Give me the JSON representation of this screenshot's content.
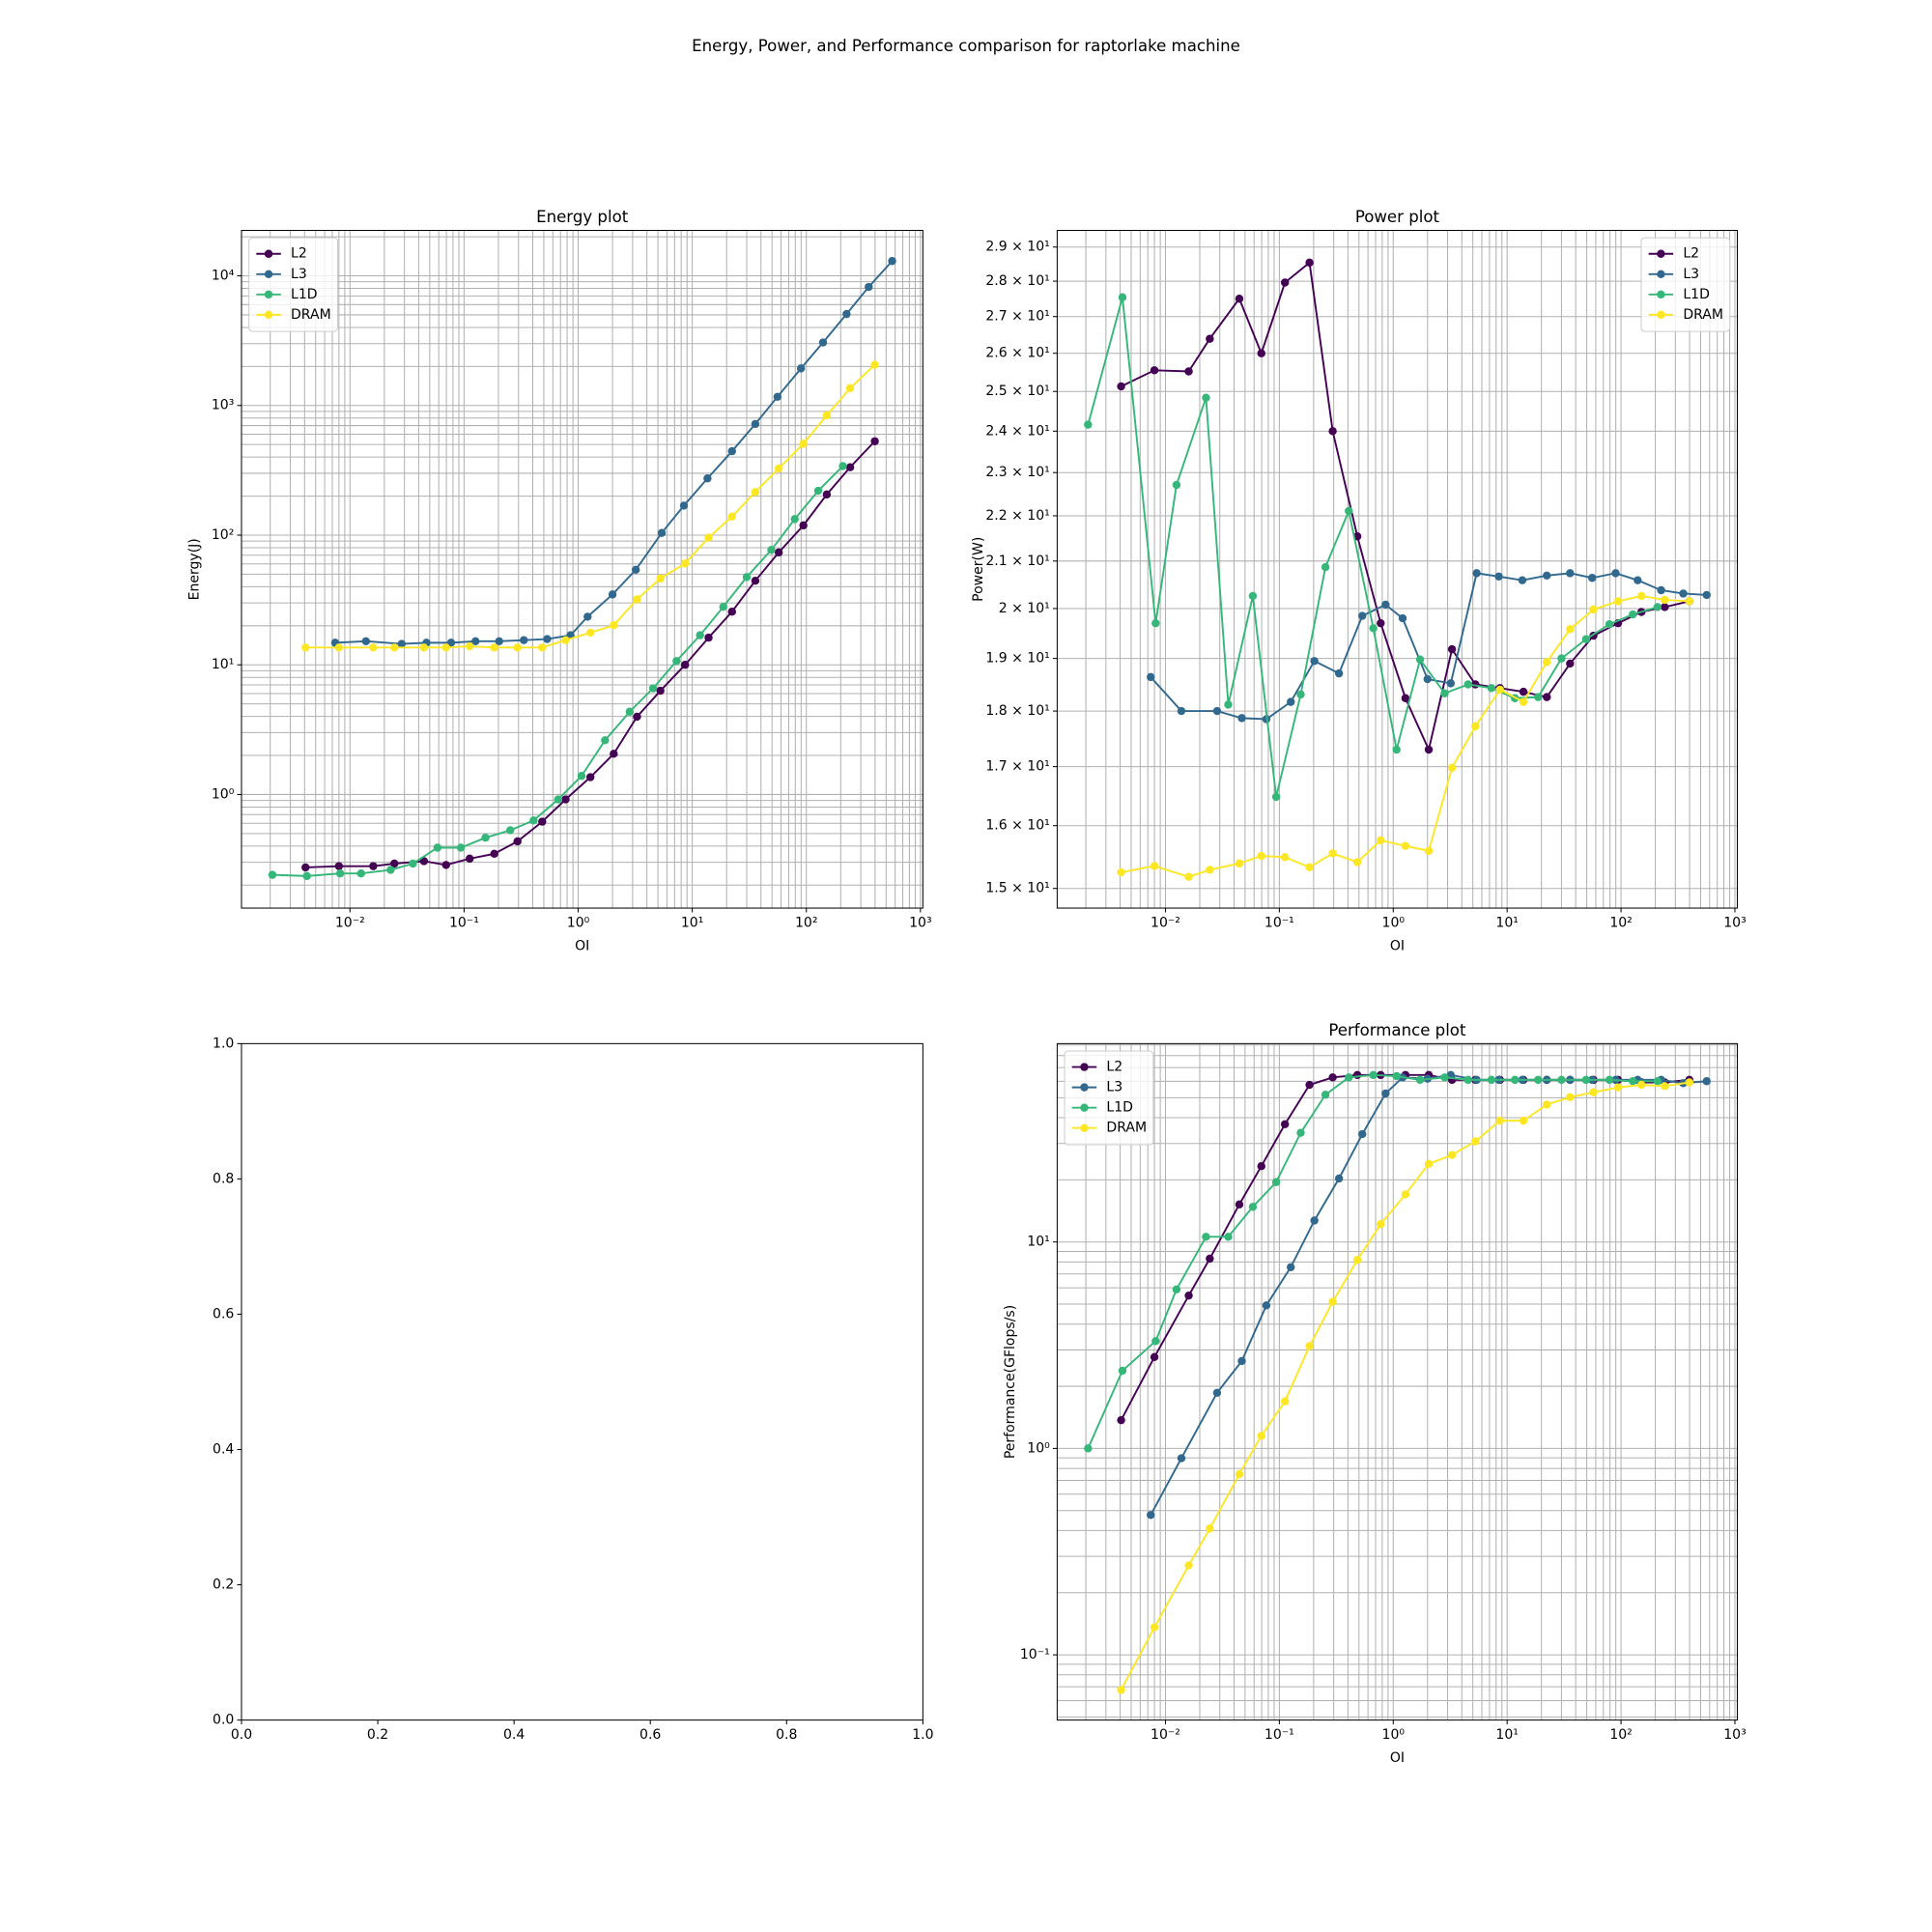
{
  "title": "Energy, Power, and Performance comparison for raptorlake machine",
  "chart_data": [
    {
      "type": "line",
      "title": "Energy plot",
      "xlabel": "OI",
      "ylabel": "Energy(J)",
      "xscale": "log",
      "yscale": "log",
      "xlim": [
        0.00112,
        1050
      ],
      "ylim": [
        0.133,
        22400
      ],
      "xticks": [
        {
          "value": 0.01,
          "label": "10⁻²"
        },
        {
          "value": 0.1,
          "label": "10⁻¹"
        },
        {
          "value": 1,
          "label": "10⁰"
        },
        {
          "value": 10,
          "label": "10¹"
        },
        {
          "value": 100,
          "label": "10²"
        },
        {
          "value": 1000,
          "label": "10³"
        }
      ],
      "yticks": [
        {
          "value": 1,
          "label": "10⁰"
        },
        {
          "value": 10,
          "label": "10¹"
        },
        {
          "value": 100,
          "label": "10²"
        },
        {
          "value": 1000,
          "label": "10³"
        },
        {
          "value": 10000,
          "label": "10⁴"
        }
      ],
      "grid": true,
      "legend": "upper left",
      "series": [
        {
          "name": "L2",
          "color": "#440154",
          "x": [
            0.00408,
            0.008,
            0.016,
            0.0245,
            0.0445,
            0.0695,
            0.112,
            0.184,
            0.294,
            0.484,
            0.776,
            1.28,
            2.05,
            3.28,
            5.26,
            8.65,
            13.9,
            22.3,
            35.7,
            57.3,
            94.2,
            151,
            242,
            398
          ],
          "values": [
            0.274,
            0.28,
            0.28,
            0.293,
            0.306,
            0.286,
            0.32,
            0.349,
            0.435,
            0.617,
            0.916,
            1.36,
            2.06,
            3.98,
            6.31,
            10,
            16.2,
            25.7,
            44.5,
            73.6,
            119,
            206,
            334,
            530
          ]
        },
        {
          "name": "L3",
          "color": "#31688e",
          "x": [
            0.00742,
            0.0138,
            0.0284,
            0.0468,
            0.0769,
            0.126,
            0.203,
            0.334,
            0.535,
            0.857,
            1.21,
            2.0,
            3.2,
            5.4,
            8.45,
            13.6,
            22.3,
            35.7,
            55.8,
            89.7,
            140,
            225,
            352,
            565
          ],
          "values": [
            14.8,
            15.2,
            14.5,
            14.8,
            14.8,
            15.2,
            15.2,
            15.5,
            15.8,
            16.9,
            23.5,
            34.9,
            54.1,
            104,
            169,
            274,
            444,
            720,
            1166,
            1932,
            3062,
            5070,
            8210,
            13000
          ]
        },
        {
          "name": "L1D",
          "color": "#35b779",
          "x": [
            0.00209,
            0.00419,
            0.0082,
            0.0125,
            0.0227,
            0.0356,
            0.0585,
            0.0938,
            0.154,
            0.254,
            0.407,
            0.668,
            1.07,
            1.72,
            2.83,
            4.54,
            7.28,
            11.7,
            18.7,
            30.0,
            49.3,
            79.1,
            127,
            209
          ],
          "values": [
            0.24,
            0.235,
            0.246,
            0.246,
            0.262,
            0.293,
            0.389,
            0.389,
            0.464,
            0.53,
            0.631,
            0.916,
            1.39,
            2.62,
            4.35,
            6.59,
            10.7,
            16.9,
            28.0,
            47.5,
            76.9,
            133,
            220,
            341
          ]
        },
        {
          "name": "DRAM",
          "color": "#fde725",
          "x": [
            0.00408,
            0.008,
            0.016,
            0.0245,
            0.0445,
            0.0695,
            0.112,
            0.184,
            0.294,
            0.484,
            0.776,
            1.28,
            2.05,
            3.28,
            5.26,
            8.65,
            13.9,
            22.3,
            35.7,
            57.3,
            94.2,
            151,
            242,
            398
          ],
          "values": [
            13.6,
            13.6,
            13.6,
            13.6,
            13.6,
            13.6,
            13.9,
            13.6,
            13.6,
            13.6,
            15.5,
            17.7,
            20.2,
            32.0,
            46.4,
            60.4,
            95.7,
            139,
            215,
            327,
            507,
            839,
            1359,
            2062
          ]
        }
      ]
    },
    {
      "type": "line",
      "title": "Power plot",
      "xlabel": "OI",
      "ylabel": "Power(W)",
      "xscale": "log",
      "yscale": "log",
      "xlim": [
        0.00112,
        1050
      ],
      "ylim": [
        14.7,
        29.5
      ],
      "xticks": [
        {
          "value": 0.01,
          "label": "10⁻²"
        },
        {
          "value": 0.1,
          "label": "10⁻¹"
        },
        {
          "value": 1,
          "label": "10⁰"
        },
        {
          "value": 10,
          "label": "10¹"
        },
        {
          "value": 100,
          "label": "10²"
        },
        {
          "value": 1000,
          "label": "10³"
        }
      ],
      "yticks": [
        {
          "value": 15,
          "label": "1.5 × 10¹"
        },
        {
          "value": 16,
          "label": "1.6 × 10¹"
        },
        {
          "value": 17,
          "label": "1.7 × 10¹"
        },
        {
          "value": 18,
          "label": "1.8 × 10¹"
        },
        {
          "value": 19,
          "label": "1.9 × 10¹"
        },
        {
          "value": 20,
          "label": "2 × 10¹"
        },
        {
          "value": 21,
          "label": "2.1 × 10¹"
        },
        {
          "value": 22,
          "label": "2.2 × 10¹"
        },
        {
          "value": 23,
          "label": "2.3 × 10¹"
        },
        {
          "value": 24,
          "label": "2.4 × 10¹"
        },
        {
          "value": 25,
          "label": "2.5 × 10¹"
        },
        {
          "value": 26,
          "label": "2.6 × 10¹"
        },
        {
          "value": 27,
          "label": "2.7 × 10¹"
        },
        {
          "value": 28,
          "label": "2.8 × 10¹"
        },
        {
          "value": 29,
          "label": "2.9 × 10¹"
        }
      ],
      "grid": true,
      "legend": "upper right",
      "series": [
        {
          "name": "L2",
          "color": "#440154",
          "x": [
            0.00408,
            0.008,
            0.016,
            0.0245,
            0.0445,
            0.0695,
            0.112,
            0.184,
            0.294,
            0.484,
            0.776,
            1.28,
            2.05,
            3.28,
            5.26,
            8.65,
            13.9,
            22.3,
            35.7,
            57.3,
            94.2,
            151,
            242,
            398
          ],
          "values": [
            25.13,
            25.55,
            25.52,
            26.39,
            27.5,
            26.0,
            27.96,
            28.54,
            24.0,
            21.54,
            19.7,
            18.24,
            17.3,
            19.18,
            18.5,
            18.43,
            18.36,
            18.26,
            18.9,
            19.45,
            19.7,
            19.93,
            20.03,
            20.15
          ]
        },
        {
          "name": "L3",
          "color": "#31688e",
          "x": [
            0.00742,
            0.0138,
            0.0284,
            0.0468,
            0.0769,
            0.126,
            0.203,
            0.334,
            0.535,
            0.857,
            1.21,
            2.0,
            3.2,
            5.4,
            8.45,
            13.6,
            22.3,
            35.7,
            55.8,
            89.7,
            140,
            225,
            352,
            565
          ],
          "values": [
            18.64,
            18.0,
            18.0,
            17.87,
            17.85,
            18.17,
            18.95,
            18.71,
            19.85,
            20.08,
            19.8,
            18.6,
            18.52,
            20.74,
            20.67,
            20.59,
            20.69,
            20.74,
            20.64,
            20.74,
            20.59,
            20.38,
            20.31,
            20.28
          ]
        },
        {
          "name": "L1D",
          "color": "#35b779",
          "x": [
            0.00209,
            0.00419,
            0.0082,
            0.0125,
            0.0227,
            0.0356,
            0.0585,
            0.0938,
            0.154,
            0.254,
            0.407,
            0.668,
            1.07,
            1.72,
            2.83,
            4.54,
            7.28,
            11.7,
            18.7,
            30.0,
            49.3,
            79.1,
            127,
            209
          ],
          "values": [
            24.16,
            27.54,
            19.7,
            22.71,
            24.84,
            18.12,
            20.26,
            16.48,
            18.31,
            20.87,
            22.11,
            19.6,
            17.3,
            18.98,
            18.33,
            18.5,
            18.43,
            18.24,
            18.26,
            19.0,
            19.38,
            19.68,
            19.88,
            20.03
          ]
        },
        {
          "name": "DRAM",
          "color": "#fde725",
          "x": [
            0.00408,
            0.008,
            0.016,
            0.0245,
            0.0445,
            0.0695,
            0.112,
            0.184,
            0.294,
            0.484,
            0.776,
            1.28,
            2.05,
            3.28,
            5.26,
            8.65,
            13.9,
            22.3,
            35.7,
            57.3,
            94.2,
            151,
            242,
            398
          ],
          "values": [
            15.25,
            15.35,
            15.18,
            15.29,
            15.39,
            15.51,
            15.49,
            15.33,
            15.55,
            15.41,
            15.76,
            15.67,
            15.59,
            16.98,
            17.72,
            18.4,
            18.17,
            18.93,
            19.58,
            19.98,
            20.15,
            20.26,
            20.18,
            20.15
          ]
        }
      ]
    },
    {
      "type": "line",
      "xlim": [
        0,
        1
      ],
      "ylim": [
        0,
        1
      ],
      "xticks": [
        {
          "value": 0,
          "label": "0.0"
        },
        0.2,
        0.4,
        0.6,
        0.8,
        {
          "value": 1,
          "label": "1.0"
        }
      ],
      "yticks": [
        {
          "value": 0,
          "label": "0.0"
        },
        0.2,
        0.4,
        0.6,
        0.8,
        {
          "value": 1,
          "label": "1.0"
        }
      ],
      "grid": false,
      "series": []
    },
    {
      "type": "line",
      "title": "Performance plot",
      "xlabel": "OI",
      "ylabel": "Performance(GFlops/s)",
      "xscale": "log",
      "yscale": "log",
      "xlim": [
        0.00112,
        1050
      ],
      "ylim": [
        0.0483,
        91.4
      ],
      "xticks": [
        {
          "value": 0.01,
          "label": "10⁻²"
        },
        {
          "value": 0.1,
          "label": "10⁻¹"
        },
        {
          "value": 1,
          "label": "10⁰"
        },
        {
          "value": 10,
          "label": "10¹"
        },
        {
          "value": 100,
          "label": "10²"
        },
        {
          "value": 1000,
          "label": "10³"
        }
      ],
      "yticks": [
        {
          "value": 0.1,
          "label": "10⁻¹"
        },
        {
          "value": 1,
          "label": "10⁰"
        },
        {
          "value": 10,
          "label": "10¹"
        }
      ],
      "grid": true,
      "legend": "upper left",
      "series": [
        {
          "name": "L2",
          "color": "#440154",
          "x": [
            0.00408,
            0.008,
            0.016,
            0.0245,
            0.0445,
            0.0695,
            0.112,
            0.184,
            0.294,
            0.484,
            0.776,
            1.28,
            2.05,
            3.28,
            5.26,
            8.65,
            13.9,
            22.3,
            35.7,
            57.3,
            94.2,
            151,
            242,
            398
          ],
          "values": [
            1.37,
            2.77,
            5.5,
            8.3,
            15.2,
            23.3,
            37.2,
            57.7,
            62.7,
            64.4,
            64.4,
            64.4,
            64.4,
            61.0,
            61.0,
            61.0,
            61.0,
            61.0,
            61.0,
            61.0,
            61.0,
            59.3,
            59.3,
            61.0
          ]
        },
        {
          "name": "L3",
          "color": "#31688e",
          "x": [
            0.00742,
            0.0138,
            0.0284,
            0.0468,
            0.0769,
            0.126,
            0.203,
            0.334,
            0.535,
            0.857,
            1.21,
            2.0,
            3.2,
            5.4,
            8.45,
            13.6,
            22.3,
            35.7,
            55.8,
            89.7,
            140,
            225,
            352,
            565
          ],
          "values": [
            0.476,
            0.896,
            1.86,
            2.65,
            4.93,
            7.55,
            12.7,
            20.3,
            33.3,
            52.4,
            62.7,
            61.8,
            64.4,
            61.0,
            61.0,
            61.0,
            61.0,
            61.0,
            61.0,
            61.0,
            61.0,
            61.0,
            58.8,
            60.1
          ]
        },
        {
          "name": "L1D",
          "color": "#35b779",
          "x": [
            0.00209,
            0.00419,
            0.0082,
            0.0125,
            0.0227,
            0.0356,
            0.0585,
            0.0938,
            0.154,
            0.254,
            0.407,
            0.668,
            1.07,
            1.72,
            2.83,
            4.54,
            7.28,
            11.7,
            18.7,
            30.0,
            49.3,
            79.1,
            127,
            209
          ],
          "values": [
            1.0,
            2.38,
            3.31,
            5.89,
            10.6,
            10.6,
            14.8,
            19.5,
            33.8,
            51.7,
            62.7,
            64.4,
            63.6,
            61.0,
            62.7,
            61.0,
            61.0,
            61.0,
            61.0,
            61.0,
            61.0,
            61.0,
            60.1,
            60.1
          ]
        },
        {
          "name": "DRAM",
          "color": "#fde725",
          "x": [
            0.00408,
            0.008,
            0.016,
            0.0245,
            0.0445,
            0.0695,
            0.112,
            0.184,
            0.294,
            0.484,
            0.776,
            1.28,
            2.05,
            3.28,
            5.26,
            8.65,
            13.9,
            22.3,
            35.7,
            57.3,
            94.2,
            151,
            242,
            398
          ],
          "values": [
            0.0676,
            0.136,
            0.271,
            0.409,
            0.75,
            1.15,
            1.69,
            3.13,
            5.13,
            8.19,
            12.2,
            17.0,
            23.9,
            26.4,
            30.7,
            38.7,
            38.7,
            46.3,
            50.3,
            53.1,
            56.1,
            57.7,
            56.9,
            59.3
          ]
        }
      ]
    }
  ]
}
